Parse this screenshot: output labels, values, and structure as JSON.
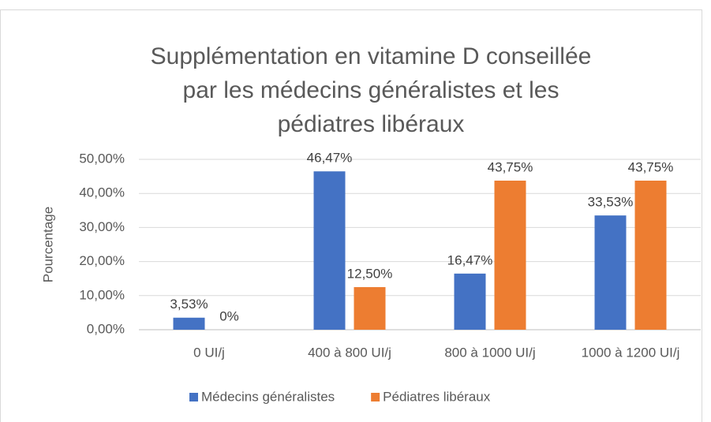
{
  "chart_data": {
    "type": "bar",
    "title": "Supplémentation en vitamine D conseillée par les médecins généralistes et les pédiatres libéraux",
    "y_label": "Pourcentage",
    "categories": [
      "0 UI/j",
      "400 à 800 UI/j",
      "800 à 1000 UI/j",
      "1000 à 1200 UI/j"
    ],
    "series": [
      {
        "name": "Médecins généralistes",
        "color": "#4472c4",
        "values": [
          3.53,
          46.47,
          16.47,
          33.53
        ],
        "value_labels": [
          "3,53%",
          "46,47%",
          "16,47%",
          "33,53%"
        ]
      },
      {
        "name": "Pédiatres libéraux",
        "color": "#ed7d31",
        "values": [
          0,
          12.5,
          43.75,
          43.75
        ],
        "value_labels": [
          "0%",
          "12,50%",
          "43,75%",
          "43,75%"
        ]
      }
    ],
    "ylim": [
      0,
      50
    ],
    "yticks": [
      {
        "value": 0,
        "label": "0,00%"
      },
      {
        "value": 10,
        "label": "10,00%"
      },
      {
        "value": 20,
        "label": "20,00%"
      },
      {
        "value": 30,
        "label": "30,00%"
      },
      {
        "value": 40,
        "label": "40,00%"
      },
      {
        "value": 50,
        "label": "50,00%"
      }
    ],
    "grid": true,
    "legend": "bottom"
  }
}
